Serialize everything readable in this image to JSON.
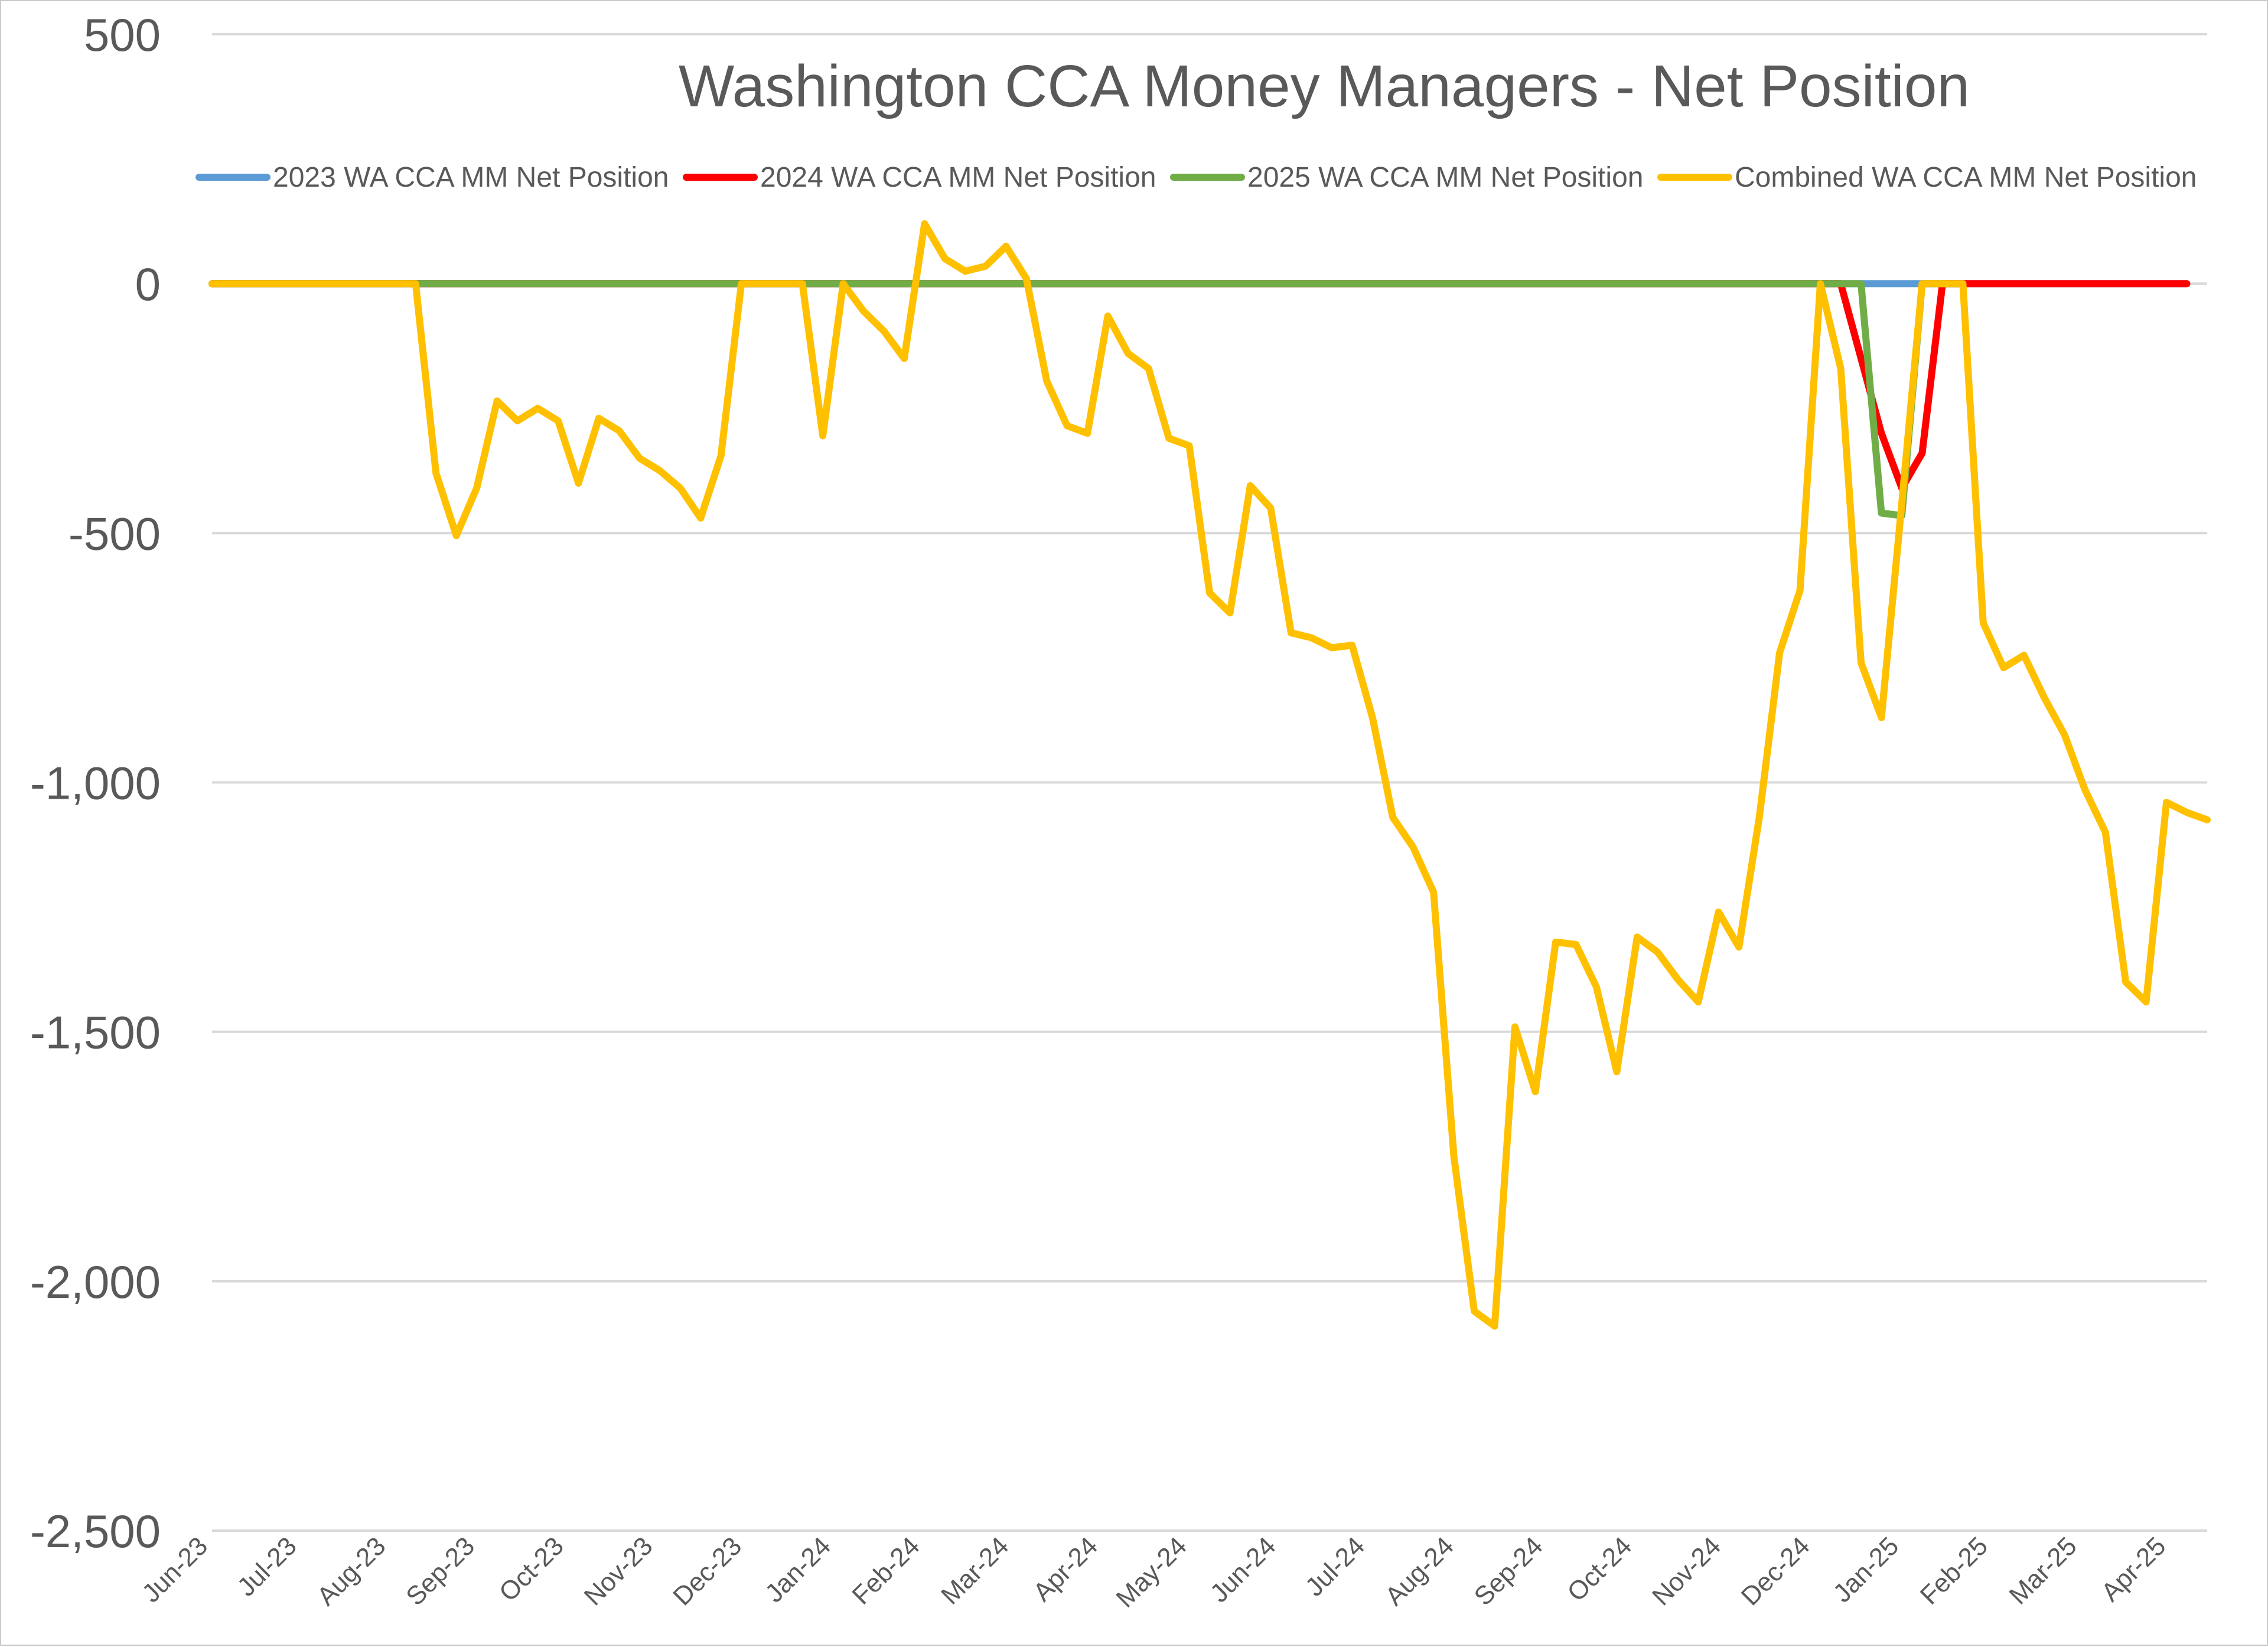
{
  "chart_data": {
    "type": "line",
    "title": "Washington CCA Money Managers - Net Position",
    "ylim": [
      -2500,
      500
    ],
    "yticks": [
      500,
      0,
      -500,
      -1000,
      -1500,
      -2000,
      -2500
    ],
    "ytick_labels": [
      "500",
      "0",
      "-500",
      "-1,000",
      "-1,500",
      "-2,000",
      "-2,500"
    ],
    "xtick_labels": [
      "Jun-23",
      "Jul-23",
      "Aug-23",
      "Sep-23",
      "Oct-23",
      "Nov-23",
      "Dec-23",
      "Jan-24",
      "Feb-24",
      "Mar-24",
      "Apr-24",
      "May-24",
      "Jun-24",
      "Jul-24",
      "Aug-24",
      "Sep-24",
      "Oct-24",
      "Nov-24",
      "Dec-24",
      "Jan-25",
      "Feb-25",
      "Mar-25",
      "Apr-25"
    ],
    "grid": true,
    "legend": "top",
    "series": [
      {
        "name": "2023 WA CCA MM Net Position",
        "color": "#5b9bd5",
        "points": [
          [
            0,
            0
          ],
          [
            81,
            0
          ],
          [
            83,
            0
          ],
          [
            84,
            0
          ],
          [
            85,
            0
          ],
          [
            86,
            0
          ],
          [
            97,
            0
          ]
        ]
      },
      {
        "name": "2024 WA CCA MM Net Position",
        "color": "#ff0000",
        "points": [
          [
            0,
            0
          ],
          [
            80,
            0
          ],
          [
            81,
            -150
          ],
          [
            82,
            -300
          ],
          [
            83,
            -410
          ],
          [
            84,
            -340
          ],
          [
            85,
            0
          ],
          [
            86,
            0
          ],
          [
            97,
            0
          ]
        ]
      },
      {
        "name": "2025 WA CCA MM Net Position",
        "color": "#70ad47",
        "points": [
          [
            0,
            0
          ],
          [
            80,
            0
          ],
          [
            81,
            0
          ],
          [
            82,
            -460
          ],
          [
            83,
            -465
          ],
          [
            84,
            0
          ],
          [
            85,
            0
          ],
          [
            86,
            0
          ]
        ]
      },
      {
        "name": "Combined WA CCA MM Net Position",
        "color": "#ffc000",
        "points": [
          [
            0,
            0
          ],
          [
            1,
            0
          ],
          [
            2,
            0
          ],
          [
            3,
            0
          ],
          [
            4,
            0
          ],
          [
            5,
            0
          ],
          [
            6,
            0
          ],
          [
            7,
            0
          ],
          [
            8,
            0
          ],
          [
            9,
            0
          ],
          [
            10,
            0
          ],
          [
            11,
            -380
          ],
          [
            12,
            -505
          ],
          [
            13,
            -410
          ],
          [
            14,
            -235
          ],
          [
            15,
            -275
          ],
          [
            16,
            -250
          ],
          [
            17,
            -275
          ],
          [
            18,
            -400
          ],
          [
            19,
            -270
          ],
          [
            20,
            -295
          ],
          [
            21,
            -350
          ],
          [
            22,
            -375
          ],
          [
            23,
            -410
          ],
          [
            24,
            -470
          ],
          [
            25,
            -345
          ],
          [
            26,
            0
          ],
          [
            27,
            0
          ],
          [
            28,
            0
          ],
          [
            29,
            0
          ],
          [
            30,
            -305
          ],
          [
            31,
            0
          ],
          [
            32,
            -55
          ],
          [
            33,
            -95
          ],
          [
            34,
            -150
          ],
          [
            35,
            120
          ],
          [
            36,
            50
          ],
          [
            37,
            25
          ],
          [
            38,
            35
          ],
          [
            39,
            75
          ],
          [
            40,
            10
          ],
          [
            41,
            -195
          ],
          [
            42,
            -285
          ],
          [
            43,
            -300
          ],
          [
            44,
            -65
          ],
          [
            45,
            -140
          ],
          [
            46,
            -170
          ],
          [
            47,
            -310
          ],
          [
            48,
            -325
          ],
          [
            49,
            -620
          ],
          [
            50,
            -660
          ],
          [
            51,
            -405
          ],
          [
            52,
            -450
          ],
          [
            53,
            -700
          ],
          [
            54,
            -710
          ],
          [
            55,
            -730
          ],
          [
            56,
            -725
          ],
          [
            57,
            -870
          ],
          [
            58,
            -1070
          ],
          [
            59,
            -1130
          ],
          [
            60,
            -1220
          ],
          [
            61,
            -1750
          ],
          [
            62,
            -2060
          ],
          [
            63,
            -2090
          ],
          [
            64,
            -1490
          ],
          [
            65,
            -1620
          ],
          [
            66,
            -1320
          ],
          [
            67,
            -1325
          ],
          [
            68,
            -1410
          ],
          [
            69,
            -1580
          ],
          [
            70,
            -1310
          ],
          [
            71,
            -1340
          ],
          [
            72,
            -1395
          ],
          [
            73,
            -1440
          ],
          [
            74,
            -1260
          ],
          [
            75,
            -1330
          ],
          [
            76,
            -1070
          ],
          [
            77,
            -740
          ],
          [
            78,
            -615
          ],
          [
            79,
            0
          ],
          [
            80,
            -170
          ],
          [
            81,
            -760
          ],
          [
            82,
            -870
          ],
          [
            83,
            -440
          ],
          [
            84,
            0
          ],
          [
            85,
            0
          ],
          [
            86,
            0
          ],
          [
            87,
            -680
          ],
          [
            88,
            -770
          ],
          [
            89,
            -745
          ],
          [
            90,
            -830
          ],
          [
            91,
            -905
          ],
          [
            92,
            -1015
          ],
          [
            93,
            -1100
          ],
          [
            94,
            -1400
          ],
          [
            95,
            -1440
          ],
          [
            96,
            -1040
          ],
          [
            97,
            -1060
          ],
          [
            98,
            -1075
          ]
        ]
      }
    ]
  }
}
